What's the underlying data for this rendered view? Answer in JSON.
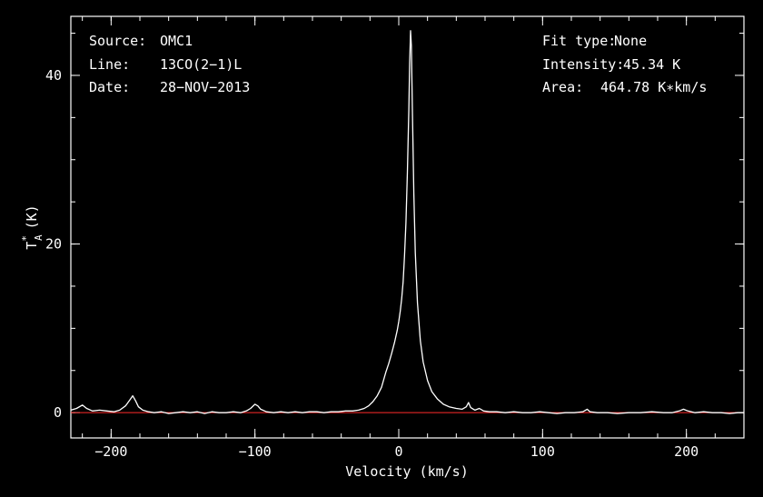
{
  "chart_data": {
    "type": "line",
    "xlabel": "Velocity (km/s)",
    "ylabel_main": "T",
    "ylabel_sup": "*",
    "ylabel_sub": "A",
    "ylabel_unit": "(K)",
    "xlim": [
      -228,
      240
    ],
    "ylim": [
      -3,
      47
    ],
    "xticks": [
      {
        "value": -200,
        "label": "−200"
      },
      {
        "value": -100,
        "label": "−100"
      },
      {
        "value": 0,
        "label": "0"
      },
      {
        "value": 100,
        "label": "100"
      },
      {
        "value": 200,
        "label": "200"
      }
    ],
    "yticks": [
      {
        "value": 0,
        "label": "0"
      },
      {
        "value": 20,
        "label": "20"
      },
      {
        "value": 40,
        "label": "40"
      }
    ],
    "x_minor_step": 20,
    "y_minor_step": 5,
    "baseline": 0,
    "baseline_color": "#ff2a2a",
    "line_color": "#ffffff",
    "series": [
      {
        "points": [
          [
            -228,
            0.3
          ],
          [
            -224,
            0.5
          ],
          [
            -220,
            0.9
          ],
          [
            -217,
            0.5
          ],
          [
            -213,
            0.2
          ],
          [
            -208,
            0.3
          ],
          [
            -203,
            0.2
          ],
          [
            -198,
            0.1
          ],
          [
            -194,
            0.3
          ],
          [
            -190,
            0.8
          ],
          [
            -187,
            1.5
          ],
          [
            -185,
            2.0
          ],
          [
            -183,
            1.4
          ],
          [
            -181,
            0.7
          ],
          [
            -178,
            0.3
          ],
          [
            -174,
            0.1
          ],
          [
            -170,
            0.0
          ],
          [
            -165,
            0.1
          ],
          [
            -160,
            -0.1
          ],
          [
            -155,
            0.0
          ],
          [
            -150,
            0.1
          ],
          [
            -145,
            0.0
          ],
          [
            -140,
            0.1
          ],
          [
            -135,
            -0.1
          ],
          [
            -130,
            0.1
          ],
          [
            -125,
            0.0
          ],
          [
            -120,
            0.0
          ],
          [
            -115,
            0.1
          ],
          [
            -110,
            0.0
          ],
          [
            -106,
            0.2
          ],
          [
            -103,
            0.5
          ],
          [
            -100,
            1.0
          ],
          [
            -98,
            0.8
          ],
          [
            -96,
            0.4
          ],
          [
            -92,
            0.1
          ],
          [
            -87,
            0.0
          ],
          [
            -82,
            0.1
          ],
          [
            -77,
            0.0
          ],
          [
            -72,
            0.1
          ],
          [
            -67,
            0.0
          ],
          [
            -62,
            0.1
          ],
          [
            -57,
            0.1
          ],
          [
            -52,
            0.0
          ],
          [
            -47,
            0.1
          ],
          [
            -42,
            0.1
          ],
          [
            -37,
            0.2
          ],
          [
            -32,
            0.2
          ],
          [
            -28,
            0.3
          ],
          [
            -24,
            0.5
          ],
          [
            -21,
            0.8
          ],
          [
            -18,
            1.3
          ],
          [
            -15,
            2.0
          ],
          [
            -12,
            3.0
          ],
          [
            -9,
            4.8
          ],
          [
            -7,
            5.8
          ],
          [
            -5,
            7.0
          ],
          [
            -3,
            8.3
          ],
          [
            -1,
            9.8
          ],
          [
            0,
            10.8
          ],
          [
            1,
            12.0
          ],
          [
            2,
            13.5
          ],
          [
            3,
            15.5
          ],
          [
            4,
            18.5
          ],
          [
            5,
            22.5
          ],
          [
            6,
            28.5
          ],
          [
            7,
            36.0
          ],
          [
            7.6,
            41.5
          ],
          [
            8.2,
            45.3
          ],
          [
            8.8,
            43.5
          ],
          [
            9.5,
            36.0
          ],
          [
            10.5,
            26.0
          ],
          [
            11.5,
            19.0
          ],
          [
            13,
            13.0
          ],
          [
            15,
            8.5
          ],
          [
            17,
            6.0
          ],
          [
            20,
            3.8
          ],
          [
            23,
            2.5
          ],
          [
            27,
            1.6
          ],
          [
            31,
            1.0
          ],
          [
            35,
            0.7
          ],
          [
            40,
            0.5
          ],
          [
            44,
            0.4
          ],
          [
            47,
            0.7
          ],
          [
            48.5,
            1.2
          ],
          [
            50,
            0.6
          ],
          [
            53,
            0.3
          ],
          [
            56,
            0.5
          ],
          [
            59,
            0.2
          ],
          [
            63,
            0.1
          ],
          [
            68,
            0.1
          ],
          [
            74,
            0.0
          ],
          [
            80,
            0.1
          ],
          [
            86,
            0.0
          ],
          [
            92,
            0.0
          ],
          [
            98,
            0.1
          ],
          [
            104,
            0.0
          ],
          [
            110,
            -0.1
          ],
          [
            116,
            0.0
          ],
          [
            122,
            0.0
          ],
          [
            128,
            0.1
          ],
          [
            131,
            0.4
          ],
          [
            133,
            0.1
          ],
          [
            138,
            0.0
          ],
          [
            145,
            0.0
          ],
          [
            152,
            -0.1
          ],
          [
            160,
            0.0
          ],
          [
            168,
            0.0
          ],
          [
            176,
            0.1
          ],
          [
            184,
            0.0
          ],
          [
            190,
            0.0
          ],
          [
            195,
            0.2
          ],
          [
            198,
            0.4
          ],
          [
            201,
            0.2
          ],
          [
            206,
            0.0
          ],
          [
            212,
            0.1
          ],
          [
            218,
            0.0
          ],
          [
            224,
            0.0
          ],
          [
            230,
            -0.1
          ],
          [
            236,
            0.0
          ],
          [
            240,
            0.0
          ]
        ]
      }
    ]
  },
  "info_left": [
    {
      "label": "Source:",
      "value": "OMC1"
    },
    {
      "label": "Line:",
      "value": "13CO(2−1)L"
    },
    {
      "label": "Date:",
      "value": "28−NOV−2013"
    }
  ],
  "info_right": [
    {
      "label": "Fit type:",
      "value": "None"
    },
    {
      "label": "Intensity:",
      "value": "45.34 K"
    },
    {
      "label": "Area:",
      "value": "464.78 K∗km/s"
    }
  ]
}
